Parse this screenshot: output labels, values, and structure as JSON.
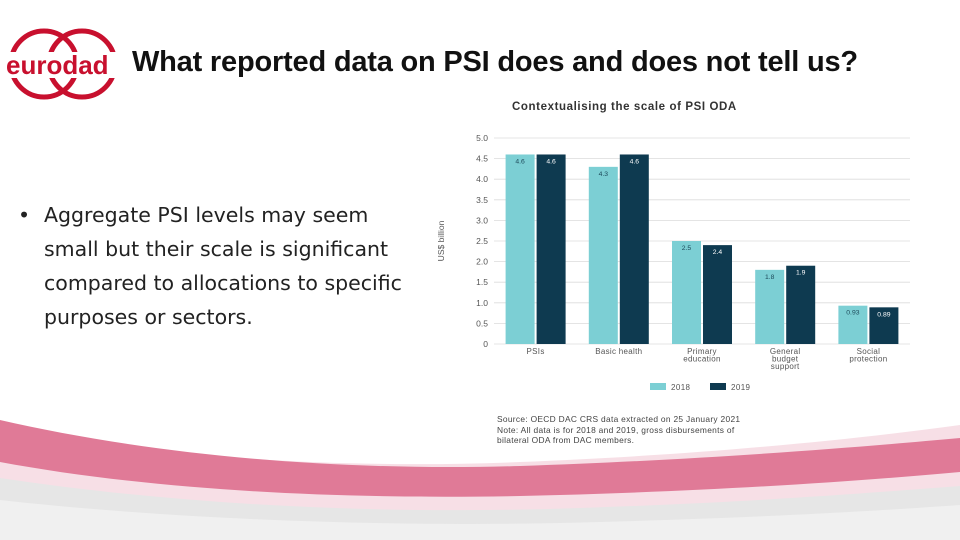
{
  "slide": {
    "title": "What reported data on PSI does and does not tell us?",
    "bullet": "Aggregate PSI levels may seem small but their scale is significant compared to allocations to specific purposes or sectors.",
    "bullet_marker": "•"
  },
  "logo": {
    "text": "eurodad",
    "icon": "eurodad-logo-icon",
    "color": "#c8102e"
  },
  "colors": {
    "series_2018": "#7ccfd4",
    "series_2019": "#0e3a50",
    "accent_pink": "#e07a97"
  },
  "chart_data": {
    "type": "bar",
    "title": "Contextualising the scale of PSI ODA",
    "ylabel": "US$ billion",
    "xlabel": "",
    "ylim": [
      0,
      5.0
    ],
    "yticks": [
      "0",
      "0.5",
      "1.0",
      "1.5",
      "2.0",
      "2.5",
      "3.0",
      "3.5",
      "4.0",
      "4.5",
      "5.0"
    ],
    "categories": [
      [
        "PSIs"
      ],
      [
        "Basic health"
      ],
      [
        "Primary",
        "education"
      ],
      [
        "General",
        "budget",
        "support"
      ],
      [
        "Social",
        "protection"
      ]
    ],
    "series": [
      {
        "name": "2018",
        "values": [
          4.6,
          4.3,
          2.5,
          1.8,
          0.93
        ],
        "labels": [
          "4.6",
          "4.3",
          "2.5",
          "1.8",
          "0.93"
        ]
      },
      {
        "name": "2019",
        "values": [
          4.6,
          4.6,
          2.4,
          1.9,
          0.89
        ],
        "labels": [
          "4.6",
          "4.6",
          "2.4",
          "1.9",
          "0.89"
        ]
      }
    ],
    "legend": "bottom",
    "grid": true,
    "source_lines": [
      "Source: OECD DAC CRS data extracted on 25 January 2021",
      "Note: All data is for 2018 and 2019, gross disbursements of",
      "bilateral ODA from DAC members."
    ]
  }
}
